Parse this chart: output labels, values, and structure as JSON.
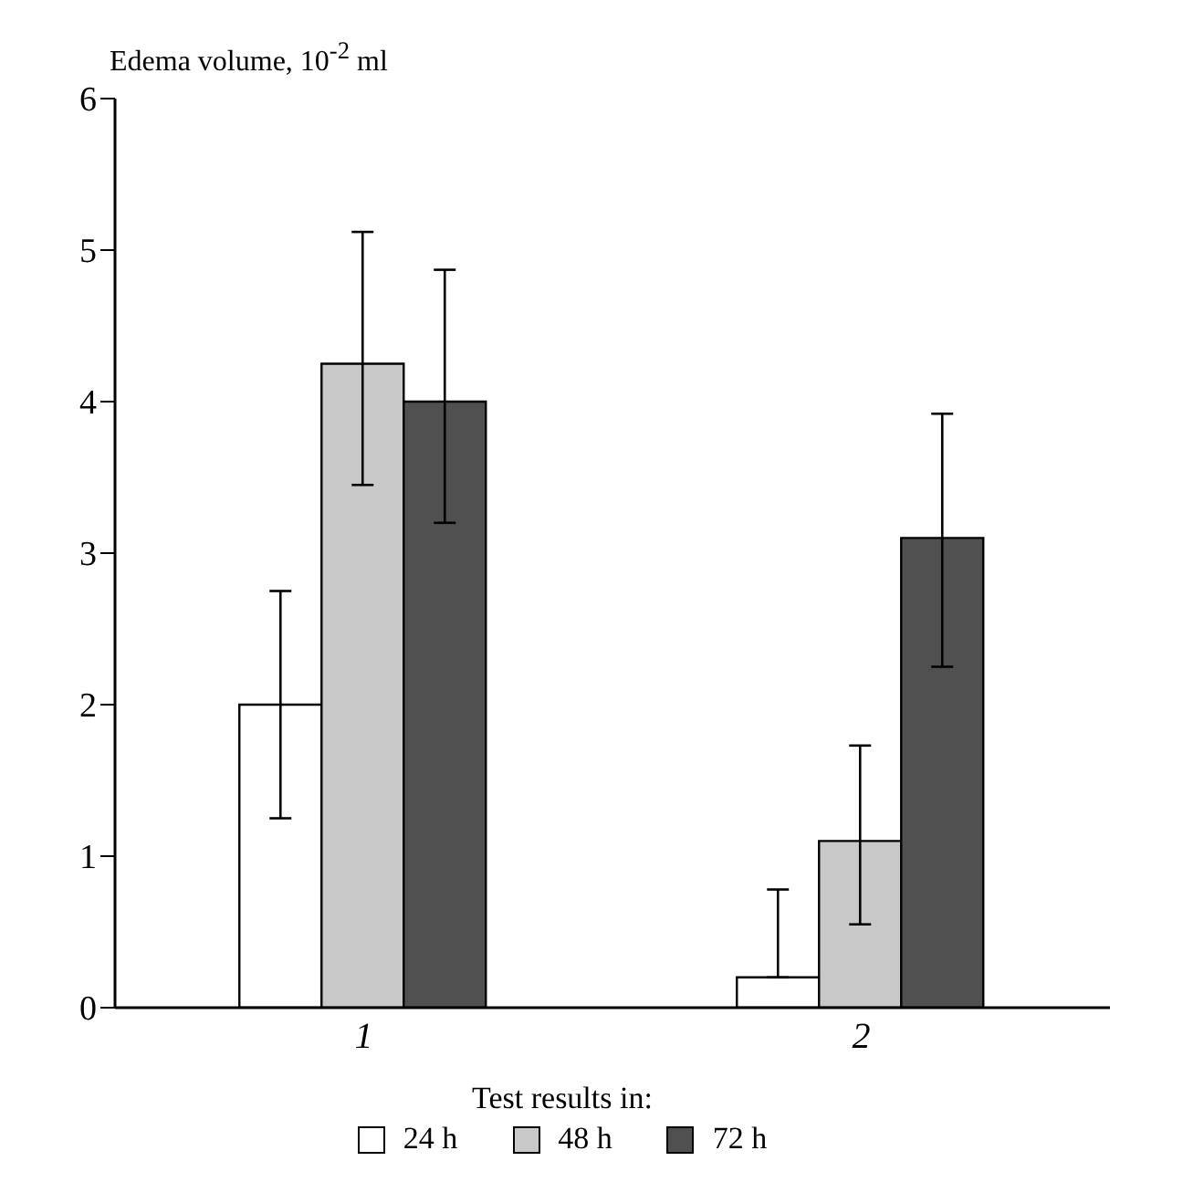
{
  "chart_data": {
    "type": "bar",
    "ylabel": "Edema volume, 10$^{-2}$ ml",
    "legend_title": "Test results in:",
    "categories": [
      "1",
      "2"
    ],
    "series": [
      {
        "name": "24 h",
        "color": "#ffffff",
        "values": [
          2.0,
          0.2
        ],
        "errors": [
          [
            1.25,
            2.75
          ],
          [
            0.2,
            0.78
          ]
        ]
      },
      {
        "name": "48 h",
        "color": "#c8c8c8",
        "values": [
          4.25,
          1.1
        ],
        "errors": [
          [
            3.45,
            5.12
          ],
          [
            0.55,
            1.73
          ]
        ]
      },
      {
        "name": "72 h",
        "color": "#505050",
        "values": [
          4.0,
          3.1
        ],
        "errors": [
          [
            3.2,
            4.87
          ],
          [
            2.25,
            3.92
          ]
        ]
      }
    ],
    "ylim": [
      0,
      6
    ],
    "yticks": [
      0,
      1,
      2,
      3,
      4,
      5,
      6
    ],
    "grid": false,
    "legend": "bottom"
  }
}
